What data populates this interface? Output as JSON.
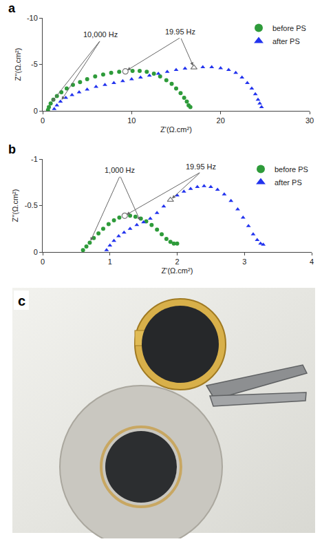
{
  "chart_data": [
    {
      "type": "scatter",
      "title": "a",
      "x_label": "Z'(Ω.cm²)",
      "y_label": "Z''(Ω.cm²)",
      "xlim": [
        0,
        30
      ],
      "xticks": [
        0,
        10,
        20,
        30
      ],
      "ylim": [
        0,
        -10
      ],
      "yticks": [
        -10,
        -5,
        0
      ],
      "grid": false,
      "legend": "upper right",
      "series": [
        {
          "name": "before PS",
          "color": "#2e9b3a",
          "marker": "circle",
          "x": [
            0.6,
            0.7,
            0.9,
            1.2,
            1.6,
            2.1,
            2.7,
            3.4,
            4.2,
            5.0,
            5.9,
            6.8,
            7.7,
            8.6,
            9.3,
            10.1,
            10.9,
            11.7,
            12.5,
            13.2,
            13.9,
            14.5,
            15.0,
            15.5,
            15.9,
            16.2,
            16.4,
            16.6
          ],
          "values": [
            -0.1,
            -0.4,
            -0.8,
            -1.2,
            -1.6,
            -2.0,
            -2.4,
            -2.8,
            -3.1,
            -3.4,
            -3.7,
            -3.9,
            -4.1,
            -4.2,
            -4.25,
            -4.3,
            -4.3,
            -4.2,
            -4.0,
            -3.7,
            -3.3,
            -2.9,
            -2.4,
            -1.9,
            -1.4,
            -1.0,
            -0.6,
            -0.4
          ]
        },
        {
          "name": "after PS",
          "color": "#2233ee",
          "marker": "triangle-up",
          "x": [
            1.3,
            1.6,
            2.0,
            2.6,
            3.3,
            4.1,
            5.0,
            6.0,
            7.0,
            8.0,
            9.0,
            10.0,
            11.0,
            12.0,
            13.0,
            14.0,
            15.0,
            16.0,
            17.0,
            18.0,
            19.0,
            20.0,
            20.9,
            21.7,
            22.4,
            23.0,
            23.5,
            23.9,
            24.2,
            24.4,
            24.6
          ],
          "values": [
            -0.2,
            -0.6,
            -1.0,
            -1.4,
            -1.7,
            -2.0,
            -2.3,
            -2.6,
            -2.8,
            -3.0,
            -3.2,
            -3.4,
            -3.6,
            -3.8,
            -4.0,
            -4.2,
            -4.4,
            -4.55,
            -4.65,
            -4.7,
            -4.7,
            -4.6,
            -4.4,
            -4.1,
            -3.6,
            -3.0,
            -2.4,
            -1.8,
            -1.2,
            -0.8,
            -0.4
          ]
        }
      ],
      "annotations": [
        {
          "text": "10,000 Hz",
          "x": 6.5,
          "y": -7.6,
          "points": [
            [
              0.9,
              -0.8
            ],
            [
              2.0,
              -1.0
            ]
          ]
        },
        {
          "text": "19.95 Hz",
          "x": 15.5,
          "y": -7.9,
          "marker": "open",
          "points": [
            [
              9.3,
              -4.25
            ],
            [
              17.0,
              -4.65
            ]
          ]
        }
      ]
    },
    {
      "type": "scatter",
      "title": "b",
      "x_label": "Z'(Ω.cm²)",
      "y_label": "Z''(Ω.cm²)",
      "xlim": [
        0,
        4
      ],
      "xticks": [
        0,
        1,
        2,
        3,
        4
      ],
      "ylim": [
        0,
        -1
      ],
      "yticks": [
        -1,
        -0.5,
        0
      ],
      "grid": false,
      "legend": "upper right",
      "series": [
        {
          "name": "before PS",
          "color": "#2e9b3a",
          "marker": "circle",
          "x": [
            0.6,
            0.65,
            0.7,
            0.76,
            0.83,
            0.9,
            0.98,
            1.06,
            1.14,
            1.22,
            1.3,
            1.38,
            1.46,
            1.54,
            1.62,
            1.7,
            1.77,
            1.84,
            1.9,
            1.95,
            2.0
          ],
          "values": [
            -0.02,
            -0.06,
            -0.1,
            -0.15,
            -0.2,
            -0.25,
            -0.3,
            -0.34,
            -0.37,
            -0.39,
            -0.39,
            -0.38,
            -0.36,
            -0.33,
            -0.29,
            -0.24,
            -0.19,
            -0.14,
            -0.11,
            -0.09,
            -0.09
          ]
        },
        {
          "name": "after PS",
          "color": "#2233ee",
          "marker": "triangle-up",
          "x": [
            0.95,
            1.0,
            1.06,
            1.13,
            1.21,
            1.3,
            1.4,
            1.5,
            1.6,
            1.7,
            1.8,
            1.9,
            2.0,
            2.1,
            2.2,
            2.3,
            2.4,
            2.5,
            2.6,
            2.7,
            2.8,
            2.9,
            2.98,
            3.06,
            3.13,
            3.19,
            3.24,
            3.28
          ],
          "values": [
            -0.02,
            -0.07,
            -0.12,
            -0.17,
            -0.21,
            -0.25,
            -0.29,
            -0.32,
            -0.36,
            -0.42,
            -0.49,
            -0.56,
            -0.61,
            -0.65,
            -0.68,
            -0.7,
            -0.71,
            -0.7,
            -0.67,
            -0.62,
            -0.55,
            -0.46,
            -0.37,
            -0.28,
            -0.19,
            -0.13,
            -0.09,
            -0.08
          ]
        }
      ],
      "annotations": [
        {
          "text": "1,000 Hz",
          "x": 1.15,
          "y": -0.82,
          "points": [
            [
              0.7,
              -0.1
            ],
            [
              1.46,
              -0.32
            ]
          ]
        },
        {
          "text": "19.95 Hz",
          "x": 2.35,
          "y": -0.86,
          "marker": "open",
          "points": [
            [
              1.22,
              -0.39
            ],
            [
              1.9,
              -0.56
            ]
          ]
        }
      ]
    }
  ],
  "photo": {
    "title": "c"
  }
}
